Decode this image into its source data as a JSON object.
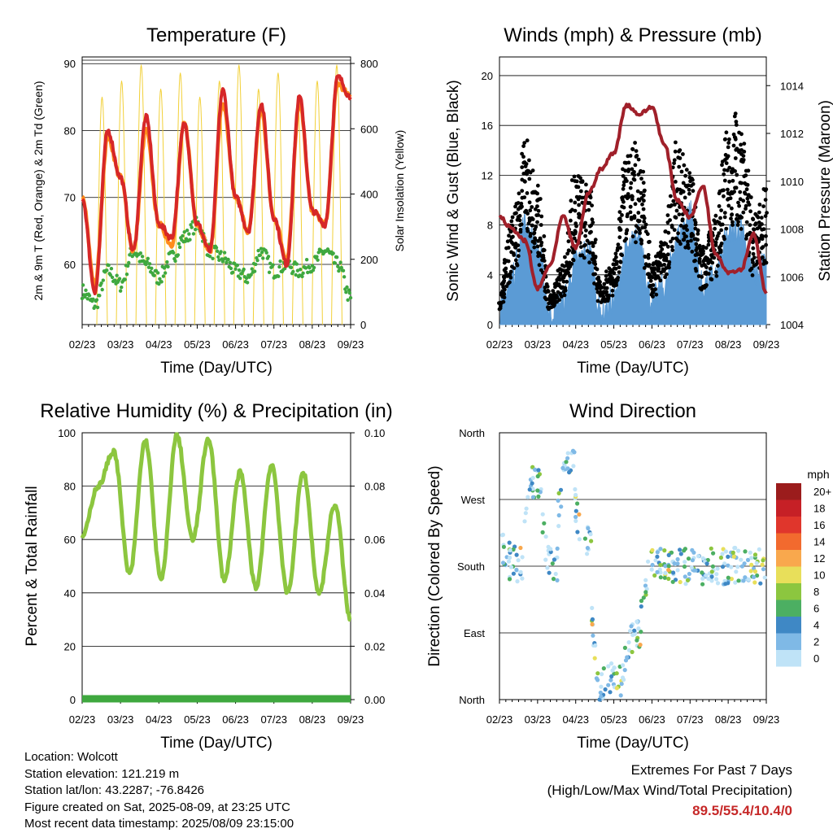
{
  "chart_data": [
    {
      "type": "line",
      "title": "Temperature (F)",
      "xlabel": "Time (Day/UTC)",
      "ylabel": "2m & 9m T (Red, Orange) & 2m Td (Green)",
      "y2label": "Solar Insolation (Yellow)",
      "x_ticks": [
        "02/23",
        "03/23",
        "04/23",
        "05/23",
        "06/23",
        "07/23",
        "08/23",
        "09/23"
      ],
      "ylim": [
        51,
        91
      ],
      "y_ticks": [
        60,
        70,
        80,
        90
      ],
      "y2lim": [
        0,
        820
      ],
      "y2_ticks": [
        0,
        200,
        400,
        600,
        800
      ],
      "series": [
        {
          "color": "#d62728",
          "values": [
            70,
            56,
            80,
            73,
            62,
            82,
            66,
            64,
            81,
            66,
            62,
            86,
            70,
            65,
            84,
            67,
            60,
            85,
            68,
            66,
            88,
            85
          ]
        },
        {
          "color": "#ff8c1a",
          "values": [
            70,
            57,
            79,
            73,
            62,
            80,
            66,
            63,
            81,
            66,
            62,
            84,
            70,
            65,
            83,
            67,
            61,
            84,
            68,
            66,
            87,
            85
          ]
        },
        {
          "color": "#3fa83f",
          "values": [
            56,
            54,
            59,
            57,
            62,
            60,
            58,
            61,
            64,
            66,
            62,
            61,
            59,
            58,
            62,
            59,
            60,
            59,
            60,
            62,
            60,
            55
          ]
        },
        {
          "color": "#f2d038",
          "axis": "y2",
          "values": [
            0,
            820,
            0,
            820,
            0,
            820,
            0,
            820,
            0,
            820,
            0,
            820,
            0,
            820,
            0,
            820
          ]
        }
      ]
    },
    {
      "type": "line",
      "title": "Winds (mph) & Pressure (mb)",
      "xlabel": "Time (Day/UTC)",
      "ylabel": "Sonic Wind & Gust (Blue, Black)",
      "y2label": "Station Pressure (Maroon)",
      "x_ticks": [
        "02/23",
        "03/23",
        "04/23",
        "05/23",
        "06/23",
        "07/23",
        "08/23",
        "09/23"
      ],
      "ylim": [
        0,
        21.5
      ],
      "y_ticks": [
        0,
        4,
        8,
        12,
        16,
        20
      ],
      "y2lim": [
        1004,
        1015.2
      ],
      "y2_ticks": [
        1004,
        1006,
        1008,
        1010,
        1012,
        1014
      ],
      "series": [
        {
          "color": "#5b9bd5",
          "values": [
            1,
            4,
            8,
            6,
            1,
            2,
            5,
            6,
            1,
            2,
            6,
            7,
            2,
            3,
            7,
            9,
            3,
            4,
            7,
            8,
            4,
            5
          ]
        },
        {
          "color": "#000000",
          "values": [
            2,
            7,
            12,
            9,
            2,
            4,
            10,
            9,
            3,
            4,
            11,
            12,
            4,
            6,
            12,
            10,
            5,
            7,
            13,
            14,
            7,
            9
          ]
        },
        {
          "color": "#a0202a",
          "axis": "y2",
          "values": [
            1008.5,
            1008,
            1007.5,
            1005.5,
            1006.5,
            1008.5,
            1007.2,
            1009.5,
            1010.5,
            1011.2,
            1013.2,
            1012.8,
            1013.1,
            1011.5,
            1009.2,
            1008.5,
            1009.8,
            1007,
            1006.2,
            1006.3,
            1007.8,
            1005.3
          ]
        }
      ]
    },
    {
      "type": "line",
      "title": "Relative Humidity (%) & Precipitation (in)",
      "xlabel": "Time (Day/UTC)",
      "ylabel": "Percent & Total Rainfall",
      "x_ticks": [
        "02/23",
        "03/23",
        "04/23",
        "05/23",
        "06/23",
        "07/23",
        "08/23",
        "09/23"
      ],
      "ylim": [
        0,
        100
      ],
      "y_ticks": [
        0,
        20,
        40,
        60,
        80,
        100
      ],
      "y2lim": [
        0,
        0.1
      ],
      "y2_ticks": [
        "0.00",
        "0.02",
        "0.04",
        "0.06",
        "0.08",
        "0.10"
      ],
      "series": [
        {
          "color": "#8cc63f",
          "values": [
            61,
            80,
            93,
            47,
            97,
            45,
            99,
            60,
            98,
            45,
            85,
            42,
            88,
            40,
            85,
            40,
            73,
            30
          ]
        },
        {
          "color": "#3fa83f",
          "axis": "y2",
          "values": [
            0,
            0,
            0,
            0,
            0,
            0,
            0,
            0
          ]
        }
      ]
    },
    {
      "type": "scatter",
      "title": "Wind Direction",
      "xlabel": "Time (Day/UTC)",
      "ylabel": "Direction (Colored By Speed)",
      "x_ticks": [
        "02/23",
        "03/23",
        "04/23",
        "05/23",
        "06/23",
        "07/23",
        "08/23",
        "09/23"
      ],
      "y_ticks": [
        "North",
        "East",
        "South",
        "West",
        "North"
      ],
      "legend_title": "mph",
      "legend_labels": [
        "20+",
        "18",
        "16",
        "14",
        "12",
        "10",
        "8",
        "6",
        "4",
        "2",
        "0"
      ],
      "legend_colors": [
        "#9b1c1c",
        "#c62026",
        "#e0362c",
        "#f26a2e",
        "#f9a84d",
        "#e8df5a",
        "#8cc63f",
        "#4caf62",
        "#3f88c5",
        "#7fb9e6",
        "#bfe3f7"
      ],
      "legend_position": "right"
    }
  ],
  "info": {
    "location": "Location: Wolcott",
    "elevation": "Station elevation: 121.219 m",
    "latlon": "Station lat/lon: 43.2287; -76.8426",
    "created": "Figure created on Sat, 2025-08-09, at 23:25 UTC",
    "timestamp": "Most recent data timestamp: 2025/08/09 23:15:00"
  },
  "extremes": {
    "title": "Extremes For Past 7 Days",
    "subtitle": "(High/Low/Max Wind/Total Precipitation)",
    "values": "89.5/55.4/10.4/0"
  }
}
